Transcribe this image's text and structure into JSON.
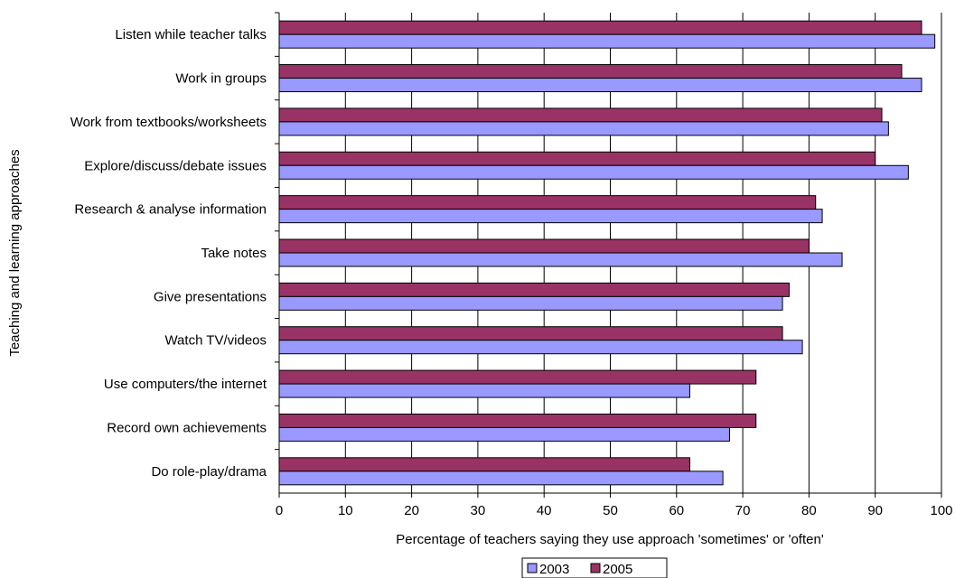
{
  "chart_data": {
    "type": "bar",
    "orientation": "horizontal",
    "title": "",
    "xlabel": "Percentage of teachers saying they use approach 'sometimes' or 'often'",
    "ylabel": "Teaching and learning approaches",
    "xlim": [
      0,
      100
    ],
    "x_ticks": [
      "0",
      "10",
      "20",
      "30",
      "40",
      "50",
      "60",
      "70",
      "80",
      "90",
      "100"
    ],
    "grid": "vertical",
    "legend_position": "bottom-center",
    "categories": [
      "Listen while teacher talks",
      "Work in groups",
      "Work from textbooks/worksheets",
      "Explore/discuss/debate issues",
      "Research & analyse information",
      "Take notes",
      "Give presentations",
      "Watch TV/videos",
      "Use computers/the internet",
      "Record own achievements",
      "Do role-play/drama"
    ],
    "series": [
      {
        "name": "2003",
        "color": "#9999ff",
        "values": [
          99,
          97,
          92,
          95,
          82,
          85,
          76,
          79,
          62,
          68,
          67
        ]
      },
      {
        "name": "2005",
        "color": "#993366",
        "values": [
          97,
          94,
          91,
          90,
          81,
          80,
          77,
          76,
          72,
          72,
          62
        ]
      }
    ]
  }
}
